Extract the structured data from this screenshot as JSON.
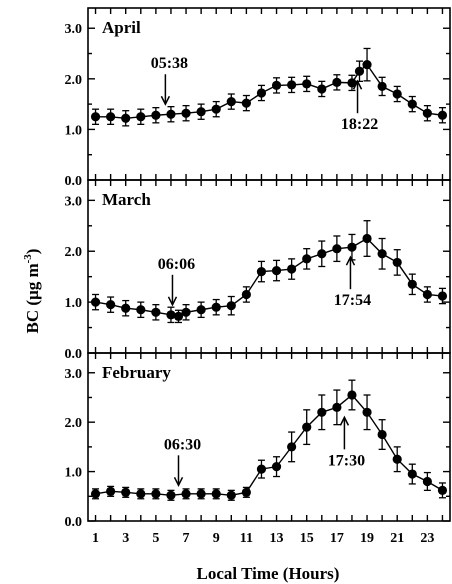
{
  "chart_data": [
    {
      "type": "line",
      "title": "April",
      "x": [
        1,
        2,
        3,
        4,
        5,
        6,
        7,
        8,
        9,
        10,
        11,
        12,
        13,
        14,
        15,
        16,
        17,
        18,
        19,
        20,
        21,
        22,
        23,
        24
      ],
      "series": [
        {
          "values": [
            1.25,
            1.25,
            1.22,
            1.25,
            1.28,
            1.3,
            1.32,
            1.35,
            1.4,
            1.55,
            1.52,
            1.72,
            1.87,
            1.88,
            1.9,
            1.8,
            1.93,
            1.92,
            2.15,
            2.28,
            1.85,
            1.7,
            1.5,
            1.32,
            1.28
          ],
          "x": [
            1,
            2,
            3,
            4,
            5,
            6,
            7,
            8,
            9,
            10,
            11,
            12,
            13,
            14,
            15,
            16,
            17,
            18,
            18.5,
            19,
            20,
            21,
            22,
            23,
            24
          ],
          "errors": [
            0.15,
            0.15,
            0.15,
            0.15,
            0.15,
            0.15,
            0.15,
            0.15,
            0.15,
            0.15,
            0.15,
            0.15,
            0.15,
            0.15,
            0.15,
            0.15,
            0.15,
            0.15,
            0.2,
            0.32,
            0.18,
            0.15,
            0.15,
            0.15,
            0.15
          ]
        }
      ],
      "ylim": [
        0,
        3.4
      ],
      "yticks": [
        "0.0",
        "1.0",
        "2.0",
        "3.0"
      ],
      "annotations": [
        {
          "text": "05:38",
          "x": 5.63,
          "direction": "down"
        },
        {
          "text": "18:22",
          "x": 18.37,
          "direction": "up"
        }
      ]
    },
    {
      "type": "line",
      "title": "March",
      "x": [
        1,
        2,
        3,
        4,
        5,
        6,
        7,
        8,
        9,
        10,
        11,
        12,
        13,
        14,
        15,
        16,
        17,
        18,
        19,
        20,
        21,
        22,
        23,
        24
      ],
      "series": [
        {
          "values": [
            1.0,
            0.95,
            0.88,
            0.85,
            0.8,
            0.75,
            0.72,
            0.8,
            0.85,
            0.9,
            0.93,
            1.15,
            1.6,
            1.62,
            1.65,
            1.85,
            1.95,
            2.05,
            2.08,
            2.25,
            1.95,
            1.78,
            1.35,
            1.15,
            1.12
          ],
          "x": [
            1,
            2,
            3,
            4,
            5,
            6,
            6.5,
            7,
            8,
            9,
            10,
            11,
            12,
            13,
            14,
            15,
            16,
            17,
            18,
            19,
            20,
            21,
            22,
            23,
            24
          ],
          "errors": [
            0.15,
            0.15,
            0.15,
            0.15,
            0.15,
            0.15,
            0.12,
            0.15,
            0.15,
            0.15,
            0.18,
            0.15,
            0.2,
            0.2,
            0.2,
            0.2,
            0.25,
            0.25,
            0.25,
            0.35,
            0.3,
            0.25,
            0.2,
            0.15,
            0.15
          ]
        }
      ],
      "ylim": [
        0,
        3.4
      ],
      "yticks": [
        "0.0",
        "1.0",
        "2.0",
        "3.0"
      ],
      "annotations": [
        {
          "text": "06:06",
          "x": 6.1,
          "direction": "down"
        },
        {
          "text": "17:54",
          "x": 17.9,
          "direction": "up"
        }
      ]
    },
    {
      "type": "line",
      "title": "February",
      "x": [
        1,
        2,
        3,
        4,
        5,
        6,
        7,
        8,
        9,
        10,
        11,
        12,
        13,
        14,
        15,
        16,
        17,
        18,
        19,
        20,
        21,
        22,
        23,
        24
      ],
      "series": [
        {
          "values": [
            0.55,
            0.6,
            0.58,
            0.55,
            0.55,
            0.52,
            0.55,
            0.55,
            0.55,
            0.52,
            0.58,
            1.05,
            1.1,
            1.5,
            1.9,
            2.2,
            2.3,
            2.55,
            2.2,
            1.75,
            1.25,
            0.95,
            0.8,
            0.62
          ],
          "x": [
            1,
            2,
            3,
            4,
            5,
            6,
            7,
            8,
            9,
            10,
            11,
            12,
            13,
            14,
            15,
            16,
            17,
            18,
            19,
            20,
            21,
            22,
            23,
            24
          ],
          "errors": [
            0.1,
            0.1,
            0.1,
            0.1,
            0.1,
            0.1,
            0.1,
            0.1,
            0.1,
            0.1,
            0.1,
            0.18,
            0.2,
            0.3,
            0.35,
            0.35,
            0.35,
            0.3,
            0.35,
            0.3,
            0.25,
            0.2,
            0.18,
            0.15
          ]
        }
      ],
      "ylim": [
        0,
        3.4
      ],
      "yticks": [
        "0.0",
        "1.0",
        "2.0",
        "3.0"
      ],
      "annotations": [
        {
          "text": "06:30",
          "x": 6.5,
          "direction": "down"
        },
        {
          "text": "17:30",
          "x": 17.5,
          "direction": "up"
        }
      ]
    }
  ],
  "shared": {
    "xlabel": "Local Time (Hours)",
    "ylabel": "BC (μg m⁻³)",
    "xlim": [
      0.5,
      24.5
    ],
    "xticks_labeled": [
      1,
      3,
      5,
      7,
      9,
      11,
      13,
      15,
      17,
      19,
      21,
      23
    ]
  }
}
